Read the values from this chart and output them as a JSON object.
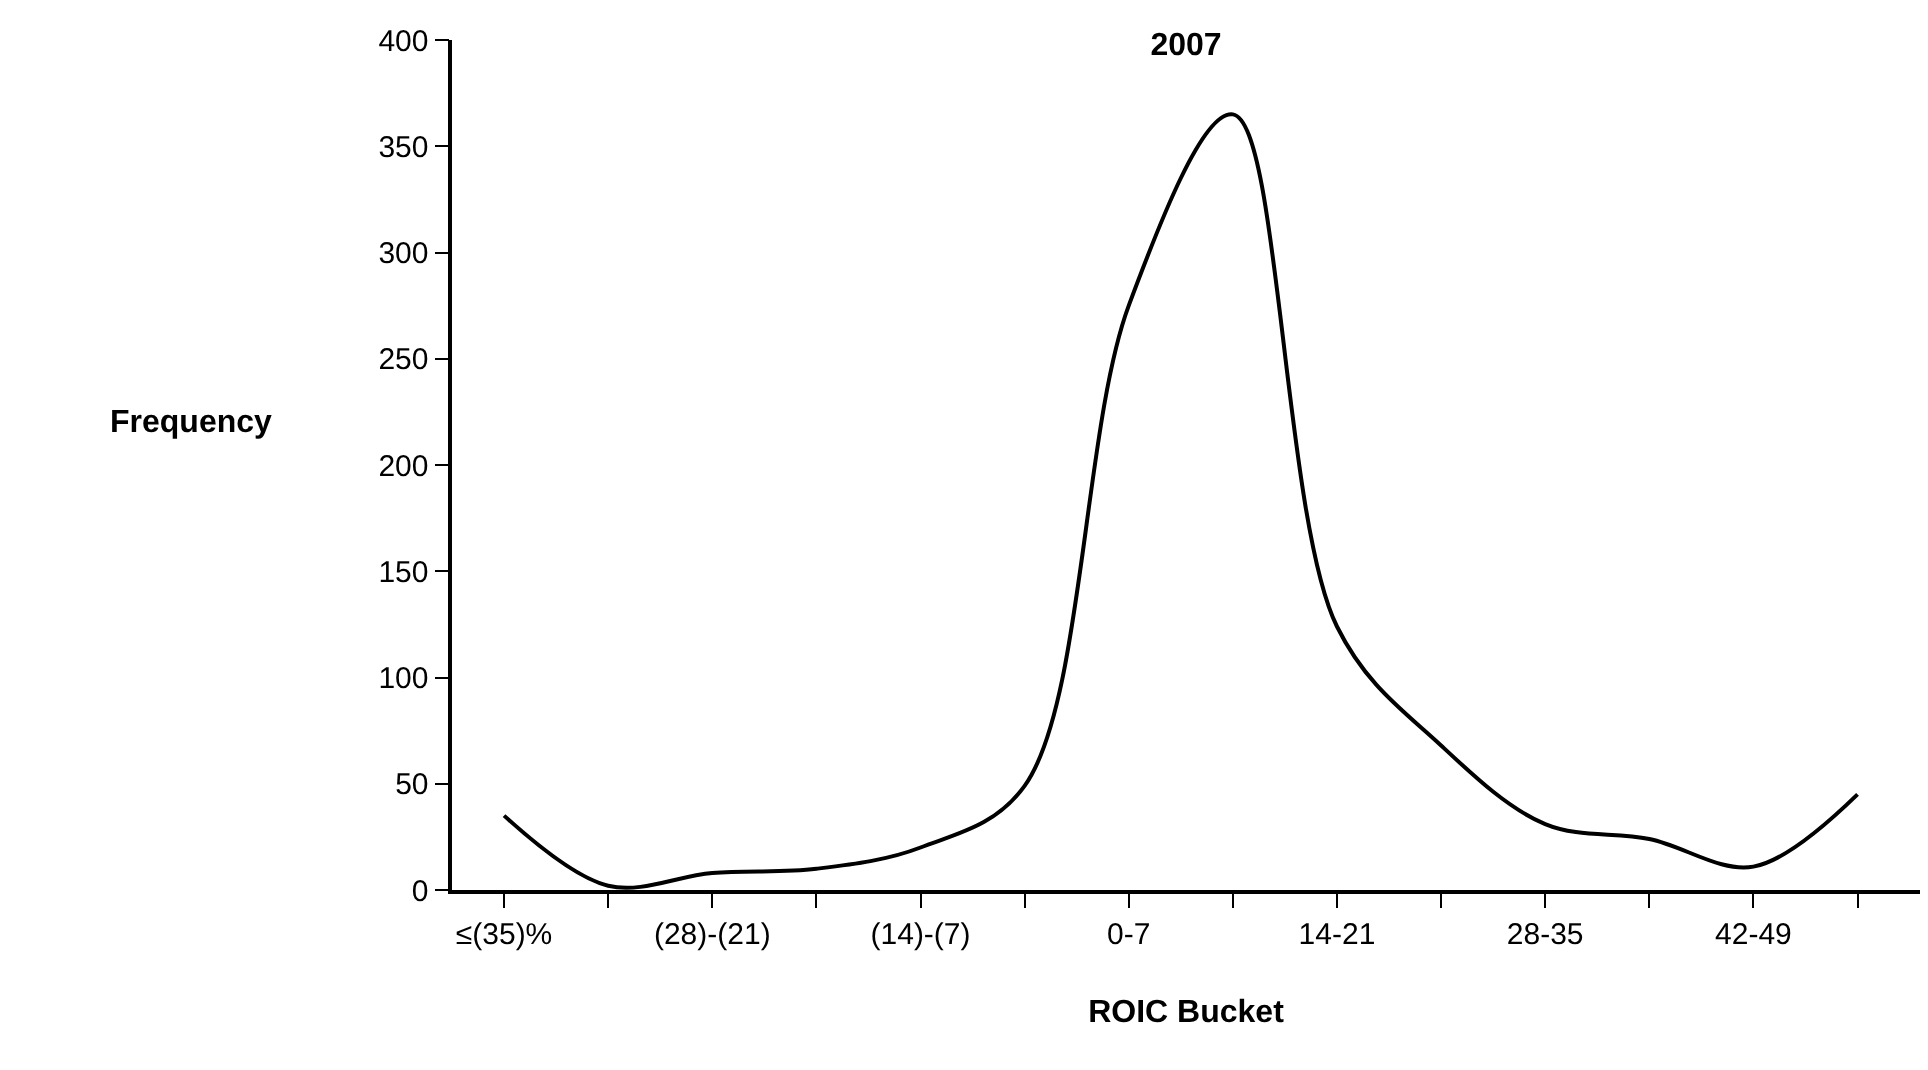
{
  "chart_data": {
    "type": "line",
    "title": "2007",
    "xlabel": "ROIC Bucket",
    "ylabel": "Frequency",
    "categories": [
      "≤(35)%",
      null,
      "(28)-(21)",
      null,
      "(14)-(7)",
      null,
      "0-7",
      null,
      "14-21",
      null,
      "28-35",
      null,
      "42-49",
      null
    ],
    "series": [
      {
        "color": "#000000",
        "values": [
          35,
          2,
          8,
          10,
          20,
          49,
          275,
          365,
          124,
          68,
          31,
          24,
          11,
          45
        ]
      }
    ],
    "ylim": [
      0,
      400
    ],
    "yticks": [
      0,
      50,
      100,
      150,
      200,
      250,
      300,
      350,
      400
    ],
    "marker": "none",
    "line_style": "solid"
  }
}
